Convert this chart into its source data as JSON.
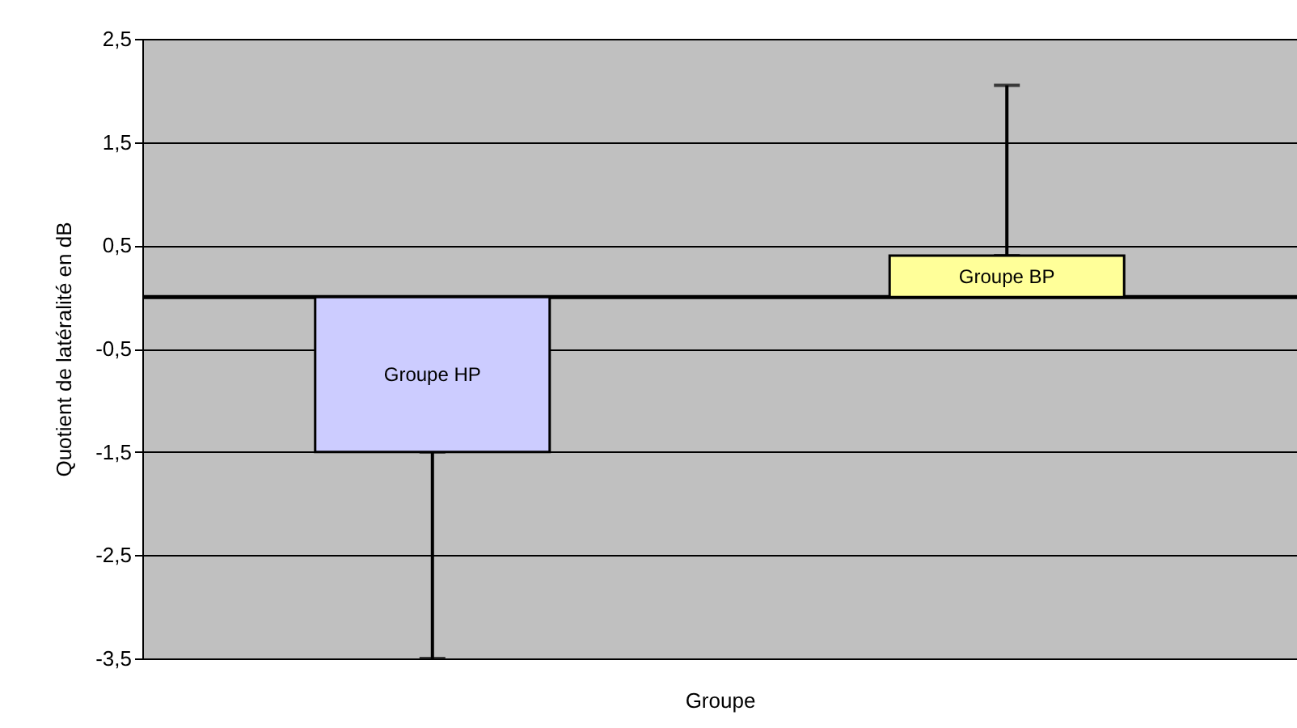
{
  "chart_data": {
    "type": "bar",
    "xlabel": "Groupe",
    "ylabel": "Quotient de latéralité en dB",
    "categories": [
      "Groupe HP",
      "Groupe BP"
    ],
    "values": [
      -1.5,
      0.4
    ],
    "colors": [
      "#ccccff",
      "#ffff99"
    ],
    "errors": [
      [
        -3.5,
        -1.5
      ],
      [
        0.4,
        2.05
      ]
    ],
    "ylim": [
      -3.5,
      2.5
    ],
    "yticks": [
      {
        "value": -3.5,
        "label": "-3,5"
      },
      {
        "value": -2.5,
        "label": "-2,5"
      },
      {
        "value": -1.5,
        "label": "-1,5"
      },
      {
        "value": -0.5,
        "label": "-0,5"
      },
      {
        "value": 0.5,
        "label": "0,5"
      },
      {
        "value": 1.5,
        "label": "1,5"
      },
      {
        "value": 2.5,
        "label": "2,5"
      }
    ],
    "ref_lines": [
      {
        "axis": "y",
        "value": 0
      }
    ],
    "grid": "y",
    "tick_labels": "y"
  }
}
